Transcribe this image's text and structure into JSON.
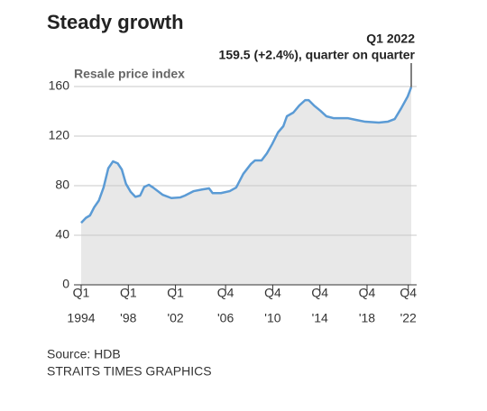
{
  "chart_data": {
    "type": "area",
    "title": "Steady growth",
    "y_label": "Resale price index",
    "annotation_title": "Q1 2022",
    "annotation": "159.5 (+2.4%), quarter on quarter",
    "source": "Source: HDB",
    "credit": "STRAITS TIMES GRAPHICS",
    "series": [
      {
        "name": "Resale price index",
        "color": "#5b9bd5",
        "fill": "#e8e8e8",
        "x": [
          1994.0,
          1994.4,
          1994.75,
          1995.1,
          1995.5,
          1995.9,
          1996.3,
          1996.7,
          1997.1,
          1997.45,
          1997.8,
          1998.2,
          1998.6,
          1999.0,
          1999.35,
          1999.75,
          2000.1,
          2000.9,
          2001.65,
          2002.4,
          2002.8,
          2003.55,
          2004.3,
          2004.85,
          2005.15,
          2005.85,
          2006.6,
          2007.15,
          2007.75,
          2008.4,
          2008.75,
          2009.3,
          2009.75,
          2010.2,
          2010.7,
          2011.15,
          2011.45,
          2012.0,
          2012.5,
          2013.0,
          2013.3,
          2013.75,
          2014.3,
          2014.8,
          2015.4,
          2016.6,
          2017.35,
          2018.1,
          2019.25,
          2020.0,
          2020.6,
          2021.15,
          2021.7,
          2022.0
        ],
        "values": [
          50,
          54,
          56,
          62.5,
          68,
          78.5,
          94,
          99.6,
          98,
          93,
          81.5,
          75,
          71,
          72,
          79,
          80.7,
          78.5,
          72.7,
          70,
          70.5,
          72,
          75.6,
          77,
          77.8,
          74,
          74,
          75.6,
          78.5,
          89.5,
          97.5,
          100.4,
          100.4,
          106,
          113.5,
          123,
          128,
          136,
          139,
          144.7,
          149,
          149,
          144.7,
          140.4,
          136,
          134.5,
          134.5,
          133,
          131.6,
          130.9,
          131.6,
          133.8,
          142.5,
          152,
          159.5
        ]
      }
    ],
    "xlim": [
      1994,
      2022
    ],
    "xticks": [
      {
        "value": 1994,
        "label": [
          "Q1",
          "1994"
        ]
      },
      {
        "value": 1998,
        "label": [
          "Q1",
          "'98"
        ]
      },
      {
        "value": 2002,
        "label": [
          "Q1",
          "'02"
        ]
      },
      {
        "value": 2006.25,
        "label": [
          "Q4",
          "'06"
        ]
      },
      {
        "value": 2010.25,
        "label": [
          "Q4",
          "'10"
        ]
      },
      {
        "value": 2014.25,
        "label": [
          "Q4",
          "'14"
        ]
      },
      {
        "value": 2018.25,
        "label": [
          "Q4",
          "'18"
        ]
      },
      {
        "value": 2021.75,
        "label": [
          "Q4",
          "'22"
        ]
      }
    ],
    "ylim": [
      0,
      160
    ],
    "yticks": [
      0,
      40,
      80,
      120,
      160
    ],
    "grid": true
  }
}
